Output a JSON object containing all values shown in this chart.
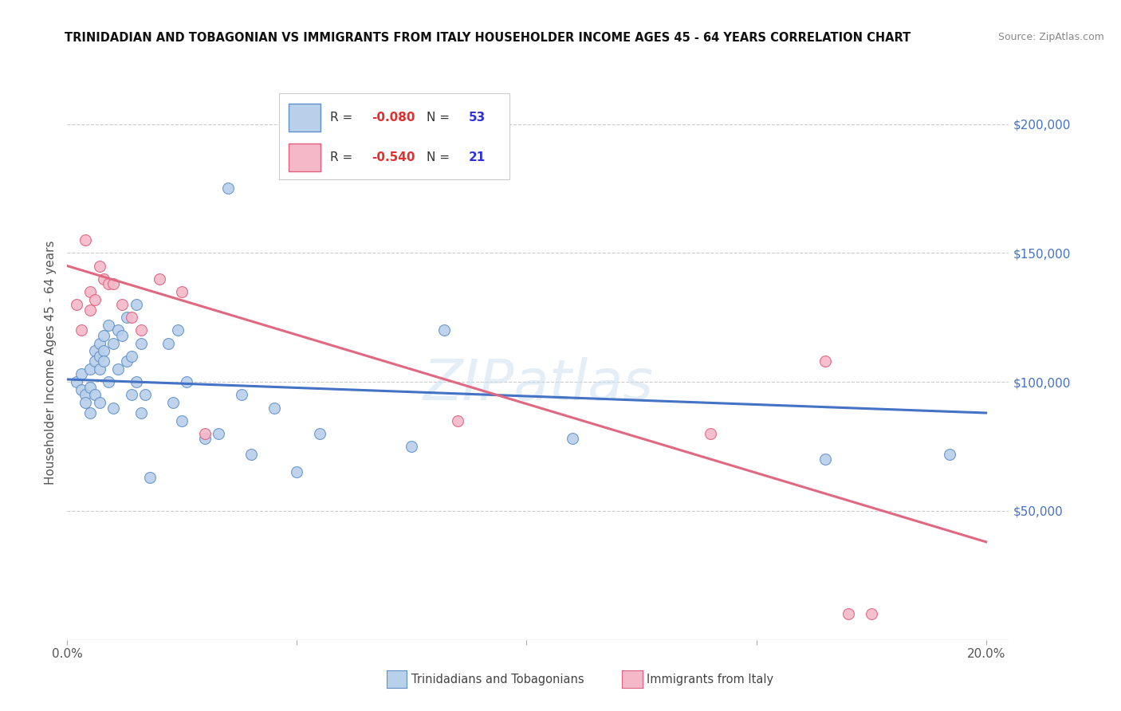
{
  "title": "TRINIDADIAN AND TOBAGONIAN VS IMMIGRANTS FROM ITALY HOUSEHOLDER INCOME AGES 45 - 64 YEARS CORRELATION CHART",
  "source": "Source: ZipAtlas.com",
  "ylabel": "Householder Income Ages 45 - 64 years",
  "yticks": [
    0,
    50000,
    100000,
    150000,
    200000
  ],
  "ytick_labels": [
    "",
    "$50,000",
    "$100,000",
    "$150,000",
    "$200,000"
  ],
  "blue_R": -0.08,
  "blue_N": 53,
  "pink_R": -0.54,
  "pink_N": 21,
  "blue_fill": "#b8d0ea",
  "pink_fill": "#f5b8c8",
  "blue_edge": "#6090c8",
  "pink_edge": "#e06080",
  "blue_line_color": "#4472c4",
  "pink_line_color": "#e06880",
  "watermark": "ZIPatlas",
  "blue_scatter_x": [
    0.002,
    0.003,
    0.003,
    0.004,
    0.004,
    0.005,
    0.005,
    0.005,
    0.006,
    0.006,
    0.006,
    0.007,
    0.007,
    0.007,
    0.007,
    0.008,
    0.008,
    0.008,
    0.009,
    0.009,
    0.01,
    0.01,
    0.011,
    0.011,
    0.012,
    0.013,
    0.013,
    0.014,
    0.014,
    0.015,
    0.015,
    0.016,
    0.016,
    0.017,
    0.018,
    0.022,
    0.023,
    0.024,
    0.025,
    0.026,
    0.03,
    0.033,
    0.035,
    0.038,
    0.04,
    0.045,
    0.05,
    0.055,
    0.075,
    0.082,
    0.11,
    0.165,
    0.192
  ],
  "blue_scatter_y": [
    100000,
    97000,
    103000,
    95000,
    92000,
    105000,
    98000,
    88000,
    112000,
    108000,
    95000,
    115000,
    110000,
    105000,
    92000,
    118000,
    112000,
    108000,
    122000,
    100000,
    115000,
    90000,
    120000,
    105000,
    118000,
    125000,
    108000,
    110000,
    95000,
    130000,
    100000,
    115000,
    88000,
    95000,
    63000,
    115000,
    92000,
    120000,
    85000,
    100000,
    78000,
    80000,
    175000,
    95000,
    72000,
    90000,
    65000,
    80000,
    75000,
    120000,
    78000,
    70000,
    72000
  ],
  "pink_scatter_x": [
    0.002,
    0.003,
    0.004,
    0.005,
    0.005,
    0.006,
    0.007,
    0.008,
    0.009,
    0.01,
    0.012,
    0.014,
    0.016,
    0.02,
    0.025,
    0.03,
    0.085,
    0.14,
    0.165,
    0.17,
    0.175
  ],
  "pink_scatter_y": [
    130000,
    120000,
    155000,
    135000,
    128000,
    132000,
    145000,
    140000,
    138000,
    138000,
    130000,
    125000,
    120000,
    140000,
    135000,
    80000,
    85000,
    80000,
    108000,
    10000,
    10000
  ],
  "blue_line_x0": 0.0,
  "blue_line_x1": 0.2,
  "blue_line_y0": 101000,
  "blue_line_y1": 88000,
  "pink_line_x0": 0.0,
  "pink_line_x1": 0.2,
  "pink_line_y0": 145000,
  "pink_line_y1": 38000,
  "xmin": 0.0,
  "xmax": 0.205,
  "ymin": 0,
  "ymax": 215000,
  "background_color": "#ffffff",
  "grid_color": "#cccccc"
}
